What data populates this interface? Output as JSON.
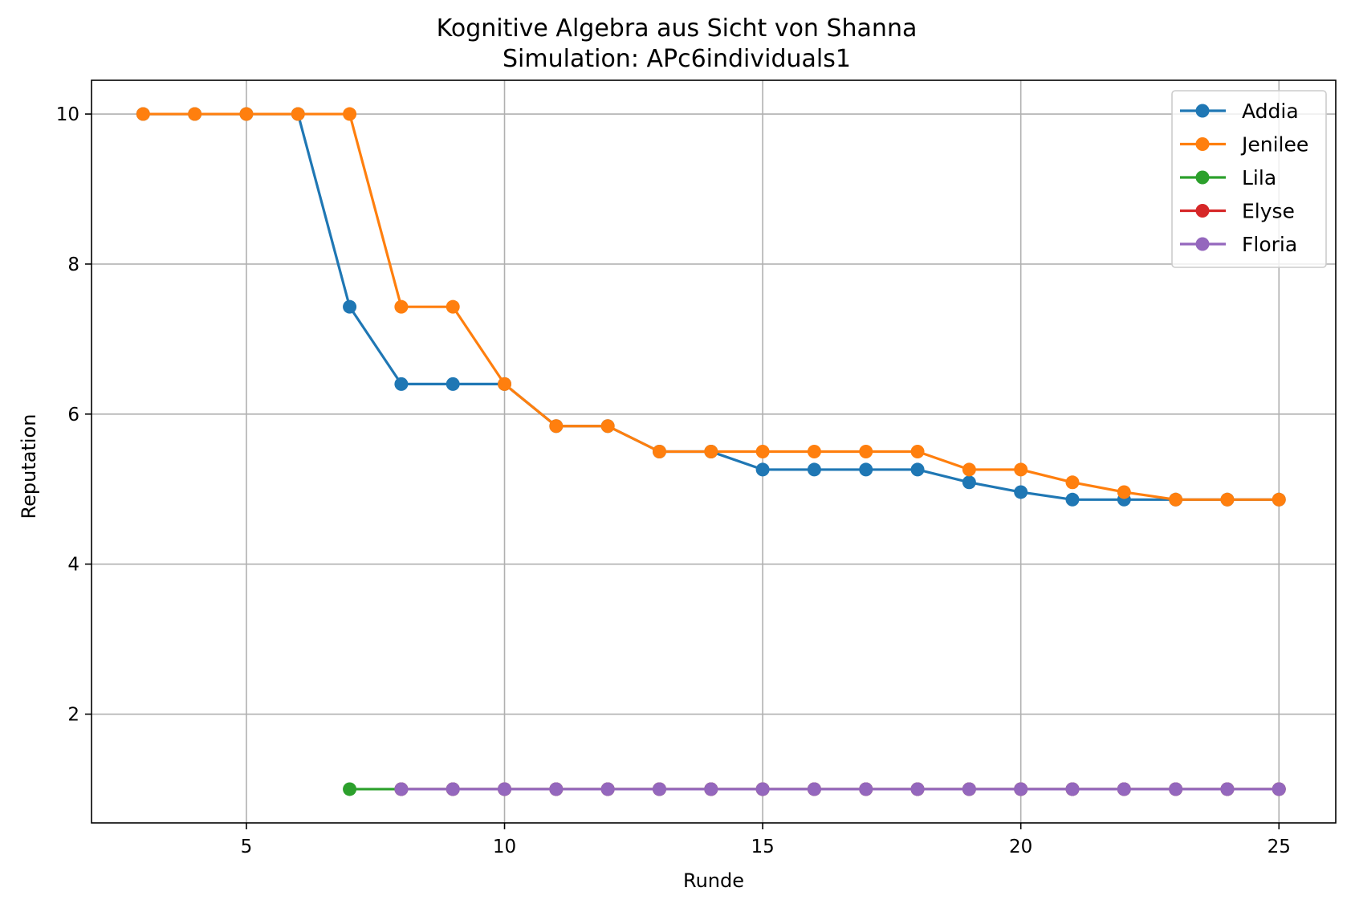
{
  "chart_data": {
    "type": "line",
    "title": "Kognitive Algebra aus Sicht von Shanna",
    "subtitle": "Simulation: APc6individuals1",
    "xlabel": "Runde",
    "ylabel": "Reputation",
    "xlim": [
      2.0,
      26.1
    ],
    "ylim": [
      0.55,
      10.45
    ],
    "xticks": [
      5,
      10,
      15,
      20,
      25
    ],
    "yticks": [
      2,
      4,
      6,
      8,
      10
    ],
    "grid": true,
    "legend_position": "top-right",
    "series": [
      {
        "name": "Addia",
        "color": "#1f77b4",
        "x": [
          3,
          4,
          5,
          6,
          7,
          8,
          9,
          10,
          11,
          12,
          13,
          14,
          15,
          16,
          17,
          18,
          19,
          20,
          21,
          22,
          23,
          24,
          25
        ],
        "y": [
          10,
          10,
          10,
          10,
          7.43,
          6.4,
          6.4,
          6.4,
          5.84,
          5.84,
          5.5,
          5.5,
          5.26,
          5.26,
          5.26,
          5.26,
          5.09,
          4.96,
          4.86,
          4.86,
          4.86,
          4.86,
          4.86
        ]
      },
      {
        "name": "Jenilee",
        "color": "#ff7f0e",
        "x": [
          3,
          4,
          5,
          6,
          7,
          8,
          9,
          10,
          11,
          12,
          13,
          14,
          15,
          16,
          17,
          18,
          19,
          20,
          21,
          22,
          23,
          24,
          25
        ],
        "y": [
          10,
          10,
          10,
          10,
          10,
          7.43,
          7.43,
          6.4,
          5.84,
          5.84,
          5.5,
          5.5,
          5.5,
          5.5,
          5.5,
          5.5,
          5.26,
          5.26,
          5.09,
          4.96,
          4.86,
          4.86,
          4.86
        ]
      },
      {
        "name": "Lila",
        "color": "#2ca02c",
        "x": [
          7,
          8,
          9,
          10,
          11,
          12,
          13,
          14,
          15,
          16,
          17,
          18,
          19,
          20,
          21,
          22,
          23,
          24,
          25
        ],
        "y": [
          1,
          1,
          1,
          1,
          1,
          1,
          1,
          1,
          1,
          1,
          1,
          1,
          1,
          1,
          1,
          1,
          1,
          1,
          1
        ]
      },
      {
        "name": "Elyse",
        "color": "#d62728",
        "x": [
          8,
          9,
          10,
          11,
          12,
          13,
          14,
          15,
          16,
          17,
          18,
          19,
          20,
          21,
          22,
          23,
          24,
          25
        ],
        "y": [
          1,
          1,
          1,
          1,
          1,
          1,
          1,
          1,
          1,
          1,
          1,
          1,
          1,
          1,
          1,
          1,
          1,
          1
        ]
      },
      {
        "name": "Floria",
        "color": "#9467bd",
        "x": [
          8,
          9,
          10,
          11,
          12,
          13,
          14,
          15,
          16,
          17,
          18,
          19,
          20,
          21,
          22,
          23,
          24,
          25
        ],
        "y": [
          1,
          1,
          1,
          1,
          1,
          1,
          1,
          1,
          1,
          1,
          1,
          1,
          1,
          1,
          1,
          1,
          1,
          1
        ]
      }
    ]
  }
}
